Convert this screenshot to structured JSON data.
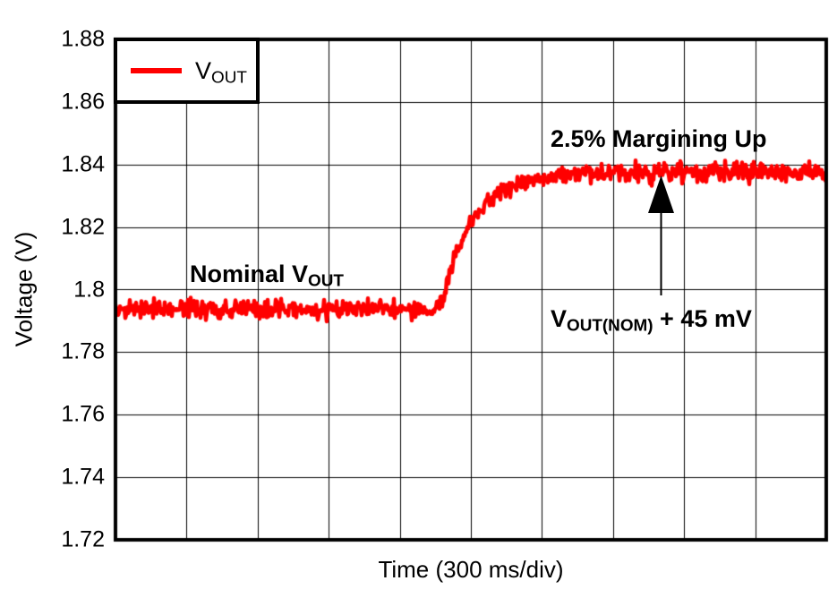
{
  "chart_data": {
    "type": "line",
    "title": "",
    "xlabel": "Time (300 ms/div)",
    "ylabel": "Voltage (V)",
    "ylim": [
      1.72,
      1.88
    ],
    "y_ticks": [
      "1.88",
      "1.86",
      "1.84",
      "1.82",
      "1.8",
      "1.78",
      "1.76",
      "1.74",
      "1.72"
    ],
    "x_divisions": 10,
    "ms_per_div": 300,
    "grid": true,
    "legend": {
      "position": "top-left",
      "label_main": "V",
      "label_sub": "OUT",
      "color": "#ff0000"
    },
    "series": [
      {
        "name": "VOUT",
        "color": "#ff0000",
        "line_width": 4.5,
        "noise_v": 0.0031,
        "nominal_v": 1.794,
        "margined_v": 1.838,
        "margin_step_mv": 45,
        "margin_percent": 2.5,
        "keypoints_div_v": [
          [
            0.0,
            1.7936
          ],
          [
            4.52,
            1.7936
          ],
          [
            4.61,
            1.798
          ],
          [
            4.73,
            1.8074
          ],
          [
            4.86,
            1.8154
          ],
          [
            4.99,
            1.8211
          ],
          [
            5.18,
            1.8269
          ],
          [
            5.36,
            1.8303
          ],
          [
            5.62,
            1.8334
          ],
          [
            5.93,
            1.8354
          ],
          [
            6.43,
            1.8369
          ],
          [
            7.19,
            1.8374
          ],
          [
            10.0,
            1.8377
          ]
        ]
      }
    ],
    "annotations": {
      "nominal": {
        "pre": "Nominal V",
        "sub": "OUT"
      },
      "margining": {
        "text": "2.5% Margining Up"
      },
      "target": {
        "pre": "V",
        "sub": "OUT(NOM)",
        "post": " + 45 mV"
      }
    }
  }
}
